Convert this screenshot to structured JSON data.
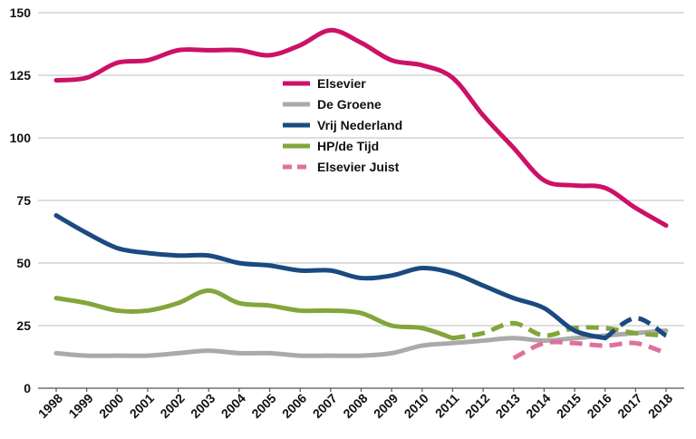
{
  "chart_data": {
    "type": "line",
    "title": "",
    "xlabel": "",
    "ylabel": "",
    "x": [
      1998,
      1999,
      2000,
      2001,
      2002,
      2003,
      2004,
      2005,
      2006,
      2007,
      2008,
      2009,
      2010,
      2011,
      2012,
      2013,
      2014,
      2015,
      2016,
      2017,
      2018
    ],
    "x_tick_labels": [
      "1998",
      "1999",
      "2000",
      "2001",
      "2002",
      "2003",
      "2004",
      "2005",
      "2006",
      "2007",
      "2008",
      "2009",
      "2010",
      "2011",
      "2012",
      "2013",
      "2014",
      "2015",
      "2016",
      "2017",
      "2018"
    ],
    "ylim": [
      0,
      150
    ],
    "y_ticks": [
      0,
      25,
      50,
      75,
      100,
      125,
      150
    ],
    "grid": "horizontal",
    "legend_position": "center",
    "series": [
      {
        "name": "Elsevier",
        "color": "#cc1166",
        "style": "solid",
        "points": [
          [
            1998,
            123
          ],
          [
            1999,
            124
          ],
          [
            2000,
            130
          ],
          [
            2001,
            131
          ],
          [
            2002,
            135
          ],
          [
            2003,
            135
          ],
          [
            2004,
            135
          ],
          [
            2005,
            133
          ],
          [
            2006,
            137
          ],
          [
            2007,
            143
          ],
          [
            2008,
            138
          ],
          [
            2009,
            131
          ],
          [
            2010,
            129
          ],
          [
            2011,
            124
          ],
          [
            2012,
            109
          ],
          [
            2013,
            96
          ],
          [
            2014,
            83
          ],
          [
            2015,
            81
          ],
          [
            2016,
            80
          ],
          [
            2017,
            72
          ],
          [
            2018,
            65
          ]
        ]
      },
      {
        "name": "De Groene",
        "color": "#aaaaaa",
        "style": "solid",
        "points": [
          [
            1998,
            14
          ],
          [
            1999,
            13
          ],
          [
            2000,
            13
          ],
          [
            2001,
            13
          ],
          [
            2002,
            14
          ],
          [
            2003,
            15
          ],
          [
            2004,
            14
          ],
          [
            2005,
            14
          ],
          [
            2006,
            13
          ],
          [
            2007,
            13
          ],
          [
            2008,
            13
          ],
          [
            2009,
            14
          ],
          [
            2010,
            17
          ],
          [
            2011,
            18
          ],
          [
            2012,
            19
          ],
          [
            2013,
            20
          ],
          [
            2014,
            19
          ],
          [
            2015,
            20
          ],
          [
            2016,
            21
          ],
          [
            2017,
            22
          ],
          [
            2018,
            23
          ]
        ]
      },
      {
        "name": "Vrij Nederland",
        "color": "#1a4a80",
        "style": "solid",
        "dashed_from": 2016,
        "points": [
          [
            1998,
            69
          ],
          [
            1999,
            62
          ],
          [
            2000,
            56
          ],
          [
            2001,
            54
          ],
          [
            2002,
            53
          ],
          [
            2003,
            53
          ],
          [
            2004,
            50
          ],
          [
            2005,
            49
          ],
          [
            2006,
            47
          ],
          [
            2007,
            47
          ],
          [
            2008,
            44
          ],
          [
            2009,
            45
          ],
          [
            2010,
            48
          ],
          [
            2011,
            46
          ],
          [
            2012,
            41
          ],
          [
            2013,
            36
          ],
          [
            2014,
            32
          ],
          [
            2015,
            23
          ],
          [
            2016,
            20
          ],
          [
            2017,
            28
          ],
          [
            2018,
            21
          ]
        ]
      },
      {
        "name": "HP/de Tijd",
        "color": "#82a63a",
        "style": "solid",
        "dashed_from": 2011,
        "points": [
          [
            1998,
            36
          ],
          [
            1999,
            34
          ],
          [
            2000,
            31
          ],
          [
            2001,
            31
          ],
          [
            2002,
            34
          ],
          [
            2003,
            39
          ],
          [
            2004,
            34
          ],
          [
            2005,
            33
          ],
          [
            2006,
            31
          ],
          [
            2007,
            31
          ],
          [
            2008,
            30
          ],
          [
            2009,
            25
          ],
          [
            2010,
            24
          ],
          [
            2011,
            20
          ],
          [
            2012,
            22
          ],
          [
            2013,
            26
          ],
          [
            2014,
            21
          ],
          [
            2015,
            24
          ],
          [
            2016,
            24
          ],
          [
            2017,
            22
          ],
          [
            2018,
            21
          ]
        ]
      },
      {
        "name": "Elsevier Juist",
        "color": "#e0709e",
        "style": "dashed",
        "points": [
          [
            2013,
            12
          ],
          [
            2014,
            18
          ],
          [
            2015,
            18
          ],
          [
            2016,
            17
          ],
          [
            2017,
            18
          ],
          [
            2018,
            14
          ]
        ]
      }
    ]
  }
}
